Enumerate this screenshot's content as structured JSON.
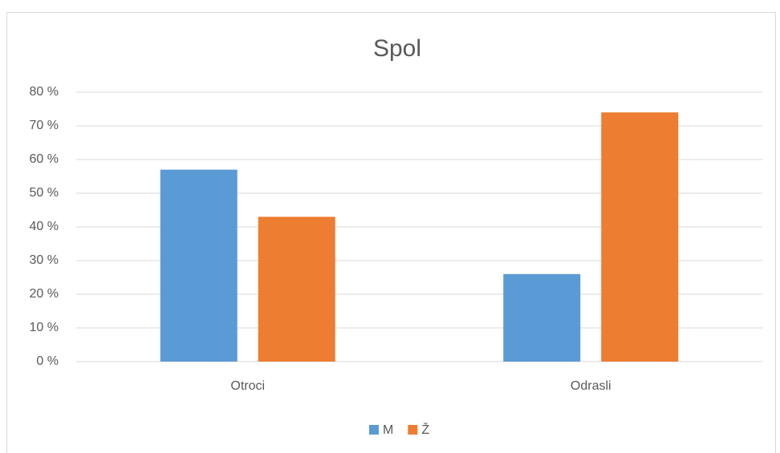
{
  "chart_data": {
    "type": "bar",
    "title": "Spol",
    "categories": [
      "Otroci",
      "Odrasli"
    ],
    "series": [
      {
        "name": "M",
        "color": "#5b9bd5",
        "values": [
          57,
          26
        ]
      },
      {
        "name": "Ž",
        "color": "#ed7d31",
        "values": [
          43,
          74
        ]
      }
    ],
    "ylim": [
      0,
      80
    ],
    "yticks": [
      {
        "value": 0,
        "label": "0 %"
      },
      {
        "value": 10,
        "label": "10 %"
      },
      {
        "value": 20,
        "label": "20 %"
      },
      {
        "value": 30,
        "label": "30 %"
      },
      {
        "value": 40,
        "label": "40 %"
      },
      {
        "value": 50,
        "label": "50 %"
      },
      {
        "value": 60,
        "label": "60 %"
      },
      {
        "value": 70,
        "label": "70 %"
      },
      {
        "value": 80,
        "label": "80 %"
      }
    ],
    "grid": true,
    "legend": "bottom"
  }
}
